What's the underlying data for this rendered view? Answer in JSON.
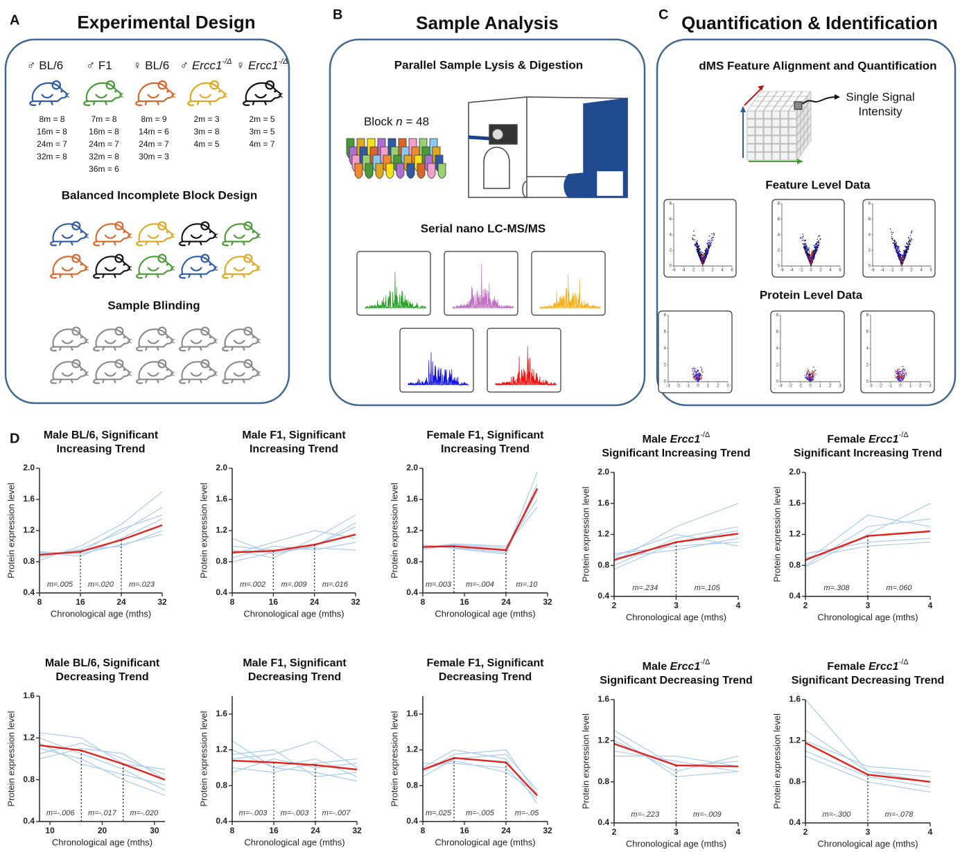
{
  "panel_a": {
    "letter": "A",
    "title": "Experimental Design",
    "groups": [
      {
        "sex": "♂",
        "name": "BL/6",
        "counts": [
          "8m = 8",
          "16m = 8",
          "24m = 7",
          "32m = 8"
        ]
      },
      {
        "sex": "♂",
        "name": "F1",
        "counts": [
          "7m = 8",
          "16m = 8",
          "24m = 7",
          "32m = 8",
          "36m = 6"
        ]
      },
      {
        "sex": "♀",
        "name": "BL/6",
        "counts": [
          "8m = 9",
          "14m = 6",
          "24m = 7",
          "30m = 3"
        ]
      },
      {
        "sex": "♂",
        "name": "Ercc1",
        "sup": "-/Δ",
        "counts": [
          "2m = 3",
          "3m = 8",
          "4m = 5"
        ]
      },
      {
        "sex": "♀",
        "name": "Ercc1",
        "sup": "-/Δ",
        "counts": [
          "2m = 5",
          "3m = 5",
          "4m = 7"
        ]
      }
    ],
    "block_design": "Balanced Incomplete Block Design",
    "blinding": "Sample Blinding"
  },
  "panel_b": {
    "letter": "B",
    "title": "Sample Analysis",
    "lysis": "Parallel Sample Lysis & Digestion",
    "block_label": "Block ",
    "block_n": "n",
    "block_count": " = 48",
    "lcms": "Serial nano LC-MS/MS"
  },
  "panel_c": {
    "letter": "C",
    "title": "Quantification & Identification",
    "alignment": "dMS Feature Alignment and Quantification",
    "signal": [
      "Single Signal",
      "Intensity"
    ],
    "feature": "Feature Level Data",
    "protein": "Protein Level Data",
    "feature_xticks": [
      -6,
      -4,
      -2,
      0,
      2,
      4,
      6
    ],
    "feature_yticks": [
      0,
      2,
      4,
      6,
      8
    ],
    "protein_xticks": [
      -3,
      -2,
      -1,
      0,
      1,
      2,
      3
    ],
    "protein_yticks": [
      0,
      2,
      4,
      6,
      8
    ]
  },
  "panel_d": {
    "letter": "D"
  },
  "chart_data": [
    {
      "type": "line",
      "title": [
        [
          "Male BL/6, Significant"
        ],
        [
          "Increasing Trend"
        ]
      ],
      "ylabel": "Protein expression level",
      "xlabel": "Chronological age (mths)",
      "x": [
        8,
        16,
        24,
        32
      ],
      "xlim": [
        8,
        32
      ],
      "xticks": [
        8,
        16,
        24,
        32
      ],
      "ylim": [
        0.4,
        2
      ],
      "yticks": [
        0.4,
        0.8,
        1.2,
        1.6,
        {
          "value": 2,
          "label": "2.0"
        }
      ],
      "breaks": [
        16,
        24
      ],
      "slopes": [
        "m=.005",
        "m=.020",
        "m=.023"
      ],
      "series": [
        {
          "color": "#a9cbee",
          "values": [
            0.86,
            0.96,
            1.18,
            1.5
          ]
        },
        {
          "color": "#a9cbee",
          "values": [
            0.93,
            0.9,
            1.02,
            1.15
          ]
        },
        {
          "color": "#a9cbee",
          "values": [
            0.82,
            1.0,
            1.28,
            1.7
          ]
        },
        {
          "color": "#a9cbee",
          "values": [
            0.92,
            0.87,
            1.1,
            1.35
          ]
        },
        {
          "color": "#a9cbee",
          "values": [
            0.88,
            0.95,
            1.0,
            1.2
          ]
        },
        {
          "color": "#a9cbee",
          "values": [
            0.9,
            0.92,
            1.22,
            1.4
          ]
        },
        {
          "color": "#e3221b",
          "values": [
            0.89,
            0.93,
            1.08,
            1.27
          ]
        }
      ]
    },
    {
      "type": "line",
      "title": [
        [
          "Male F1, Significant"
        ],
        [
          "Increasing  Trend"
        ]
      ],
      "ylabel": "Protein expression level",
      "xlabel": "Chronological age (mths)",
      "x": [
        8,
        16,
        24,
        32
      ],
      "xlim": [
        8,
        32
      ],
      "xticks": [
        8,
        16,
        24,
        32
      ],
      "ylim": [
        0.4,
        2
      ],
      "yticks": [
        0.4,
        0.8,
        1.2,
        1.6,
        {
          "value": 2,
          "label": "2.0"
        }
      ],
      "breaks": [
        16,
        24
      ],
      "slopes": [
        "m=.002",
        "m=.009",
        "m=.016"
      ],
      "series": [
        {
          "color": "#a9cbee",
          "values": [
            0.95,
            0.85,
            1.1,
            1.4
          ]
        },
        {
          "color": "#a9cbee",
          "values": [
            0.85,
            1.0,
            0.95,
            1.05
          ]
        },
        {
          "color": "#a9cbee",
          "values": [
            1.1,
            0.9,
            1.0,
            1.3
          ]
        },
        {
          "color": "#a9cbee",
          "values": [
            0.9,
            1.05,
            1.2,
            1.1
          ]
        },
        {
          "color": "#a9cbee",
          "values": [
            0.8,
            0.92,
            1.0,
            1.25
          ]
        },
        {
          "color": "#a9cbee",
          "values": [
            1.0,
            0.95,
            0.98,
            0.95
          ]
        },
        {
          "color": "#e3221b",
          "values": [
            0.92,
            0.94,
            1.02,
            1.15
          ]
        }
      ]
    },
    {
      "type": "line",
      "title": [
        [
          "Female F1, Significant"
        ],
        [
          "Increasing Trend"
        ]
      ],
      "ylabel": "Protein expression level",
      "xlabel": "Chronological age (mths)",
      "x": [
        8,
        14,
        24,
        30
      ],
      "xlim": [
        8,
        32
      ],
      "xticks": [
        8,
        16,
        24,
        32
      ],
      "ylim": [
        0.4,
        2
      ],
      "yticks": [
        0.4,
        0.8,
        1.2,
        1.6,
        {
          "value": 2,
          "label": "2.0"
        }
      ],
      "breaks": [
        14,
        24
      ],
      "slopes": [
        "m=.003",
        "m=-.004",
        "m=.10"
      ],
      "series": [
        {
          "color": "#a9cbee",
          "values": [
            1.0,
            0.98,
            0.92,
            1.95
          ]
        },
        {
          "color": "#a9cbee",
          "values": [
            0.96,
            1.02,
            0.98,
            1.6
          ]
        },
        {
          "color": "#a9cbee",
          "values": [
            1.02,
            0.97,
            0.9,
            1.8
          ]
        },
        {
          "color": "#a9cbee",
          "values": [
            0.98,
            1.03,
            1.0,
            1.5
          ]
        },
        {
          "color": "#a9cbee",
          "values": [
            1.0,
            0.99,
            0.94,
            1.7
          ]
        },
        {
          "color": "#e3221b",
          "values": [
            0.99,
            1.0,
            0.95,
            1.74
          ]
        }
      ]
    },
    {
      "type": "line",
      "title": [
        [
          "Male ",
          {
            "text": "Ercc1",
            "style": "italic"
          },
          {
            "text": "-/Δ",
            "style": "sup"
          }
        ],
        [
          "Significant Increasing Trend"
        ]
      ],
      "ylabel": "Protein expression level",
      "xlabel": "Chronological age (mths)",
      "x": [
        2,
        3,
        4
      ],
      "xlim": [
        2,
        4
      ],
      "xticks": [
        2,
        3,
        4
      ],
      "ylim": [
        0.4,
        2
      ],
      "yticks": [
        0.4,
        0.8,
        1.2,
        1.6,
        {
          "value": 2,
          "label": "2.0"
        }
      ],
      "breaks": [
        3
      ],
      "slopes": [
        "m=.234",
        "m=.105"
      ],
      "series": [
        {
          "color": "#a9cbee",
          "values": [
            0.8,
            1.15,
            1.3
          ]
        },
        {
          "color": "#a9cbee",
          "values": [
            0.95,
            1.05,
            1.1
          ]
        },
        {
          "color": "#a9cbee",
          "values": [
            0.85,
            1.3,
            1.6
          ]
        },
        {
          "color": "#a9cbee",
          "values": [
            0.9,
            1.0,
            1.15
          ]
        },
        {
          "color": "#a9cbee",
          "values": [
            0.75,
            1.1,
            1.25
          ]
        },
        {
          "color": "#a9cbee",
          "values": [
            0.92,
            1.2,
            1.05
          ]
        },
        {
          "color": "#e3221b",
          "values": [
            0.87,
            1.1,
            1.21
          ]
        }
      ]
    },
    {
      "type": "line",
      "title": [
        [
          "Female ",
          {
            "text": "Ercc1",
            "style": "italic"
          },
          {
            "text": "-/Δ",
            "style": "sup"
          }
        ],
        [
          "Significant Increasing Trend"
        ]
      ],
      "ylabel": "Protein expression level",
      "xlabel": "Chronological age (mths)",
      "x": [
        2,
        3,
        4
      ],
      "xlim": [
        2,
        4
      ],
      "xticks": [
        2,
        3,
        4
      ],
      "ylim": [
        0.4,
        2
      ],
      "yticks": [
        0.4,
        0.8,
        1.2,
        1.6,
        {
          "value": 2,
          "label": "2.0"
        }
      ],
      "breaks": [
        3
      ],
      "slopes": [
        "m=.308",
        "m=.060"
      ],
      "series": [
        {
          "color": "#a9cbee",
          "values": [
            0.8,
            1.3,
            1.4
          ]
        },
        {
          "color": "#a9cbee",
          "values": [
            0.95,
            1.1,
            1.15
          ]
        },
        {
          "color": "#a9cbee",
          "values": [
            0.85,
            1.45,
            1.3
          ]
        },
        {
          "color": "#a9cbee",
          "values": [
            0.9,
            1.05,
            1.1
          ]
        },
        {
          "color": "#a9cbee",
          "values": [
            0.78,
            1.2,
            1.6
          ]
        },
        {
          "color": "#e3221b",
          "values": [
            0.87,
            1.18,
            1.24
          ]
        }
      ]
    },
    {
      "type": "line",
      "title": [
        [
          "Male BL/6, Significant"
        ],
        [
          "Decreasing Trend"
        ]
      ],
      "ylabel": "Protein expression level",
      "xlabel": "Chronological age (mths)",
      "x": [
        8,
        16,
        24,
        32
      ],
      "xlim": [
        8,
        32
      ],
      "xticks": [
        10,
        20,
        30
      ],
      "ylim": [
        0.4,
        1.6
      ],
      "yticks": [
        0.4,
        0.8,
        1.2,
        1.6
      ],
      "breaks": [
        16,
        24
      ],
      "slopes": [
        "m=-.006",
        "m=-.017",
        "m=-.020"
      ],
      "series": [
        {
          "color": "#a9cbee",
          "values": [
            1.2,
            1.05,
            0.9,
            0.7
          ]
        },
        {
          "color": "#a9cbee",
          "values": [
            1.05,
            1.15,
            1.0,
            0.85
          ]
        },
        {
          "color": "#a9cbee",
          "values": [
            1.15,
            0.95,
            0.85,
            0.75
          ]
        },
        {
          "color": "#a9cbee",
          "values": [
            1.25,
            1.2,
            0.95,
            0.9
          ]
        },
        {
          "color": "#a9cbee",
          "values": [
            1.0,
            1.1,
            1.05,
            0.8
          ]
        },
        {
          "color": "#a9cbee",
          "values": [
            1.1,
            1.0,
            0.8,
            0.65
          ]
        },
        {
          "color": "#e3221b",
          "values": [
            1.13,
            1.08,
            0.95,
            0.8
          ]
        }
      ]
    },
    {
      "type": "line",
      "title": [
        [
          "Male F1, Significant"
        ],
        [
          "Decreasing  Trend"
        ]
      ],
      "ylabel": "Protein expression level",
      "xlabel": "Chronological age (mths)",
      "x": [
        8,
        16,
        24,
        32
      ],
      "xlim": [
        8,
        32
      ],
      "xticks": [
        8,
        16,
        24,
        32
      ],
      "ylim": [
        0.4,
        1.8
      ],
      "yticks": [
        0.4,
        0.8,
        1.2,
        1.6
      ],
      "breaks": [
        16,
        24
      ],
      "slopes": [
        "m=-.003",
        "m=-.003",
        "m=-.007"
      ],
      "series": [
        {
          "color": "#a9cbee",
          "values": [
            1.2,
            1.0,
            1.1,
            0.9
          ]
        },
        {
          "color": "#a9cbee",
          "values": [
            0.95,
            1.1,
            1.0,
            1.05
          ]
        },
        {
          "color": "#a9cbee",
          "values": [
            1.1,
            1.15,
            1.3,
            1.0
          ]
        },
        {
          "color": "#a9cbee",
          "values": [
            1.3,
            1.0,
            0.95,
            0.85
          ]
        },
        {
          "color": "#a9cbee",
          "values": [
            1.0,
            0.95,
            1.05,
            1.1
          ]
        },
        {
          "color": "#a9cbee",
          "values": [
            1.15,
            1.2,
            0.9,
            0.95
          ]
        },
        {
          "color": "#e3221b",
          "values": [
            1.08,
            1.06,
            1.03,
            0.98
          ]
        }
      ]
    },
    {
      "type": "line",
      "title": [
        [
          "Female  F1, Significant"
        ],
        [
          "Decreasing Trend"
        ]
      ],
      "ylabel": "Protein expression level",
      "xlabel": "Chronological age (mths)",
      "x": [
        8,
        14,
        24,
        30
      ],
      "xlim": [
        8,
        32
      ],
      "xticks": [
        8,
        16,
        24,
        32
      ],
      "ylim": [
        0.4,
        1.8
      ],
      "yticks": [
        0.4,
        0.8,
        1.2,
        1.6
      ],
      "breaks": [
        14,
        24
      ],
      "slopes": [
        "m=.025",
        "m=-.005",
        "m=-.05"
      ],
      "series": [
        {
          "color": "#a9cbee",
          "values": [
            0.95,
            1.15,
            1.2,
            0.7
          ]
        },
        {
          "color": "#a9cbee",
          "values": [
            1.05,
            1.05,
            1.0,
            0.65
          ]
        },
        {
          "color": "#a9cbee",
          "values": [
            0.9,
            1.1,
            1.15,
            0.75
          ]
        },
        {
          "color": "#a9cbee",
          "values": [
            1.0,
            1.2,
            1.1,
            0.6
          ]
        },
        {
          "color": "#a9cbee",
          "values": [
            0.98,
            1.08,
            0.95,
            0.72
          ]
        },
        {
          "color": "#e3221b",
          "values": [
            0.98,
            1.11,
            1.06,
            0.69
          ]
        }
      ]
    },
    {
      "type": "line",
      "title": [
        [
          "Male ",
          {
            "text": "Ercc1",
            "style": "italic"
          },
          {
            "text": "-/Δ",
            "style": "sup"
          }
        ],
        [
          "Significant Decreasing Trend"
        ]
      ],
      "ylabel": "Protein expression level",
      "xlabel": "Chronological age (mths)",
      "x": [
        2,
        3,
        4
      ],
      "xlim": [
        2,
        4
      ],
      "xticks": [
        2,
        3,
        4
      ],
      "ylim": [
        0.4,
        1.6
      ],
      "yticks": [
        0.4,
        0.8,
        1.2,
        1.6
      ],
      "breaks": [
        3
      ],
      "slopes": [
        "m=-.223",
        "m=-.009"
      ],
      "series": [
        {
          "color": "#a9cbee",
          "values": [
            1.3,
            0.95,
            1.0
          ]
        },
        {
          "color": "#a9cbee",
          "values": [
            1.1,
            1.0,
            0.9
          ]
        },
        {
          "color": "#a9cbee",
          "values": [
            1.2,
            0.9,
            1.05
          ]
        },
        {
          "color": "#a9cbee",
          "values": [
            1.05,
            1.05,
            0.95
          ]
        },
        {
          "color": "#a9cbee",
          "values": [
            1.25,
            0.85,
            0.9
          ]
        },
        {
          "color": "#e3221b",
          "values": [
            1.17,
            0.96,
            0.95
          ]
        }
      ]
    },
    {
      "type": "line",
      "title": [
        [
          "Female ",
          {
            "text": "Ercc1",
            "style": "italic"
          },
          {
            "text": "-/Δ",
            "style": "sup"
          }
        ],
        [
          "Significant Decreasing Trend"
        ]
      ],
      "ylabel": "Protein expression level",
      "xlabel": "Chronological age (mths)",
      "x": [
        2,
        3,
        4
      ],
      "xlim": [
        2,
        4
      ],
      "xticks": [
        2,
        3,
        4
      ],
      "ylim": [
        0.4,
        1.6
      ],
      "yticks": [
        0.4,
        0.8,
        1.2,
        1.6
      ],
      "breaks": [
        3
      ],
      "slopes": [
        "m=-.300",
        "m=-.078"
      ],
      "series": [
        {
          "color": "#a9cbee",
          "values": [
            1.3,
            0.9,
            0.85
          ]
        },
        {
          "color": "#a9cbee",
          "values": [
            1.1,
            0.85,
            0.75
          ]
        },
        {
          "color": "#a9cbee",
          "values": [
            1.2,
            0.95,
            0.9
          ]
        },
        {
          "color": "#a9cbee",
          "values": [
            1.05,
            0.8,
            0.7
          ]
        },
        {
          "color": "#a9cbee",
          "values": [
            1.6,
            0.9,
            0.8
          ]
        },
        {
          "color": "#e3221b",
          "values": [
            1.18,
            0.87,
            0.8
          ]
        }
      ]
    }
  ]
}
